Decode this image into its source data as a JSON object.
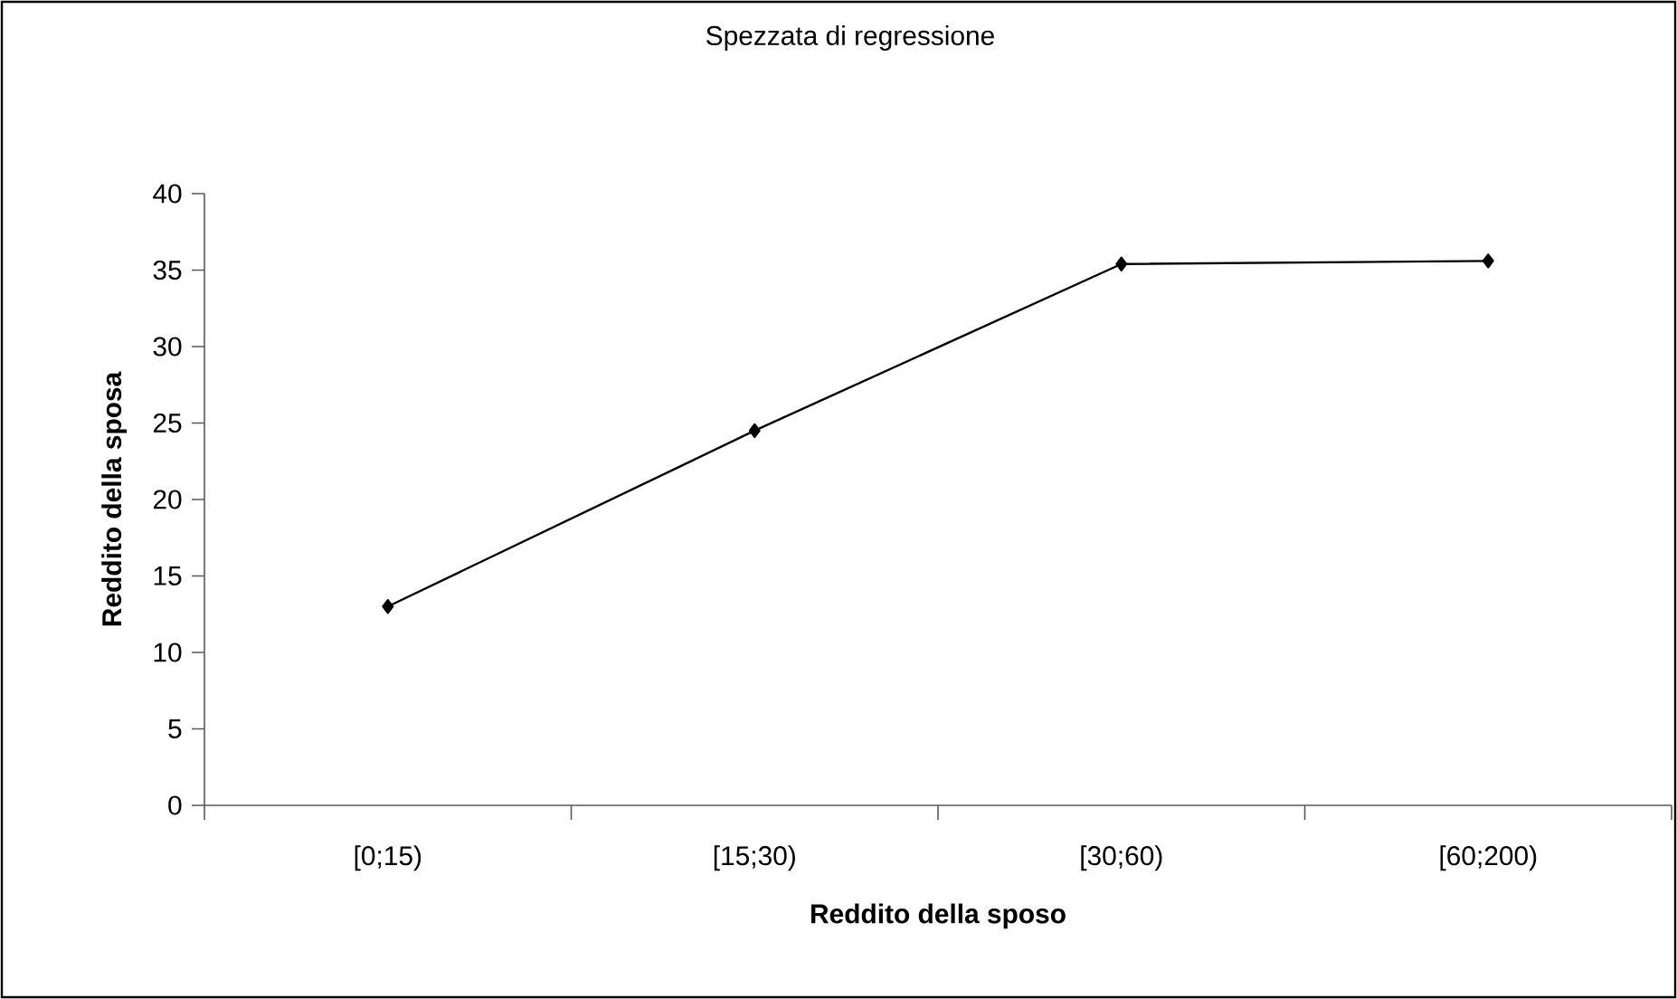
{
  "chart_data": {
    "type": "line",
    "title": "Spezzata di regressione",
    "xlabel": "Reddito della sposo",
    "ylabel": "Reddito della sposa",
    "categories": [
      "[0;15)",
      "[15;30)",
      "[30;60)",
      "[60;200)"
    ],
    "series": [
      {
        "color": "#000000",
        "values": [
          13.0,
          24.5,
          35.4,
          35.6
        ]
      }
    ],
    "ylim": [
      0,
      40
    ],
    "yticks": [
      0,
      5,
      10,
      15,
      20,
      25,
      30,
      35,
      40
    ],
    "grid": false,
    "marker": "diamond",
    "line_style": "solid"
  }
}
